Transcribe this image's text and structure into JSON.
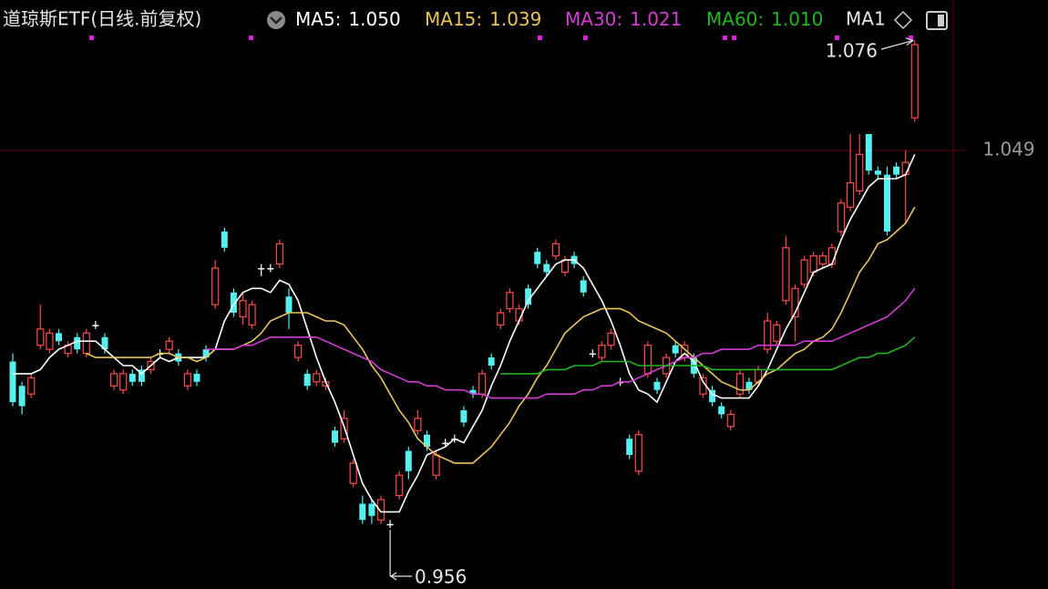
{
  "chart_data": {
    "type": "candlestick",
    "title": "道琼斯ETF(日线.前复权)",
    "ylim": [
      0.941,
      1.086
    ],
    "up_color": "#ff4a4a",
    "down_color": "#54f0f0",
    "flat_color": "#ffffff",
    "open": [
      0.997,
      0.991,
      0.989,
      1.001,
      1.0,
      1.004,
      0.999,
      1.003,
      0.999,
      1.006,
      1.003,
      0.991,
      0.99,
      0.994,
      0.995,
      0.995,
      0.999,
      1.0,
      0.999,
      0.991,
      0.994,
      1.0,
      1.011,
      1.029,
      1.014,
      1.008,
      1.006,
      1.02,
      1.02,
      1.021,
      1.013,
      0.998,
      0.994,
      0.992,
      0.991,
      0.98,
      0.978,
      0.967,
      0.962,
      0.962,
      0.958,
      0.957,
      0.964,
      0.975,
      0.98,
      0.979,
      0.969,
      0.977,
      0.978,
      0.985,
      0.99,
      0.989,
      0.998,
      1.006,
      1.01,
      1.007,
      1.015,
      1.024,
      1.021,
      1.023,
      1.019,
      1.023,
      1.017,
      0.999,
      0.998,
      1.001,
      0.992,
      0.978,
      0.97,
      0.994,
      0.992,
      0.994,
      1.001,
      0.998,
      0.998,
      0.989,
      0.99,
      0.986,
      0.981,
      0.989,
      0.992,
      0.992,
      1.0,
      1.002,
      1.012,
      1.008,
      1.016,
      1.019,
      1.021,
      1.021,
      1.029,
      1.035,
      1.039,
      1.053,
      1.044,
      1.043,
      1.045,
      1.043,
      1.057
    ],
    "high": [
      0.999,
      0.992,
      0.994,
      1.011,
      1.005,
      1.005,
      1.002,
      1.004,
      1.005,
      1.007,
      1.004,
      0.995,
      0.995,
      0.995,
      0.996,
      0.998,
      1.0,
      1.003,
      1.0,
      0.995,
      0.995,
      1.001,
      1.022,
      1.03,
      1.015,
      1.014,
      1.012,
      1.021,
      1.021,
      1.027,
      1.015,
      1.002,
      0.995,
      0.995,
      0.993,
      0.981,
      0.985,
      0.973,
      0.964,
      0.963,
      0.964,
      0.958,
      0.97,
      0.976,
      0.985,
      0.98,
      0.975,
      0.978,
      0.979,
      0.986,
      0.991,
      0.995,
      0.999,
      1.01,
      1.015,
      1.011,
      1.016,
      1.025,
      1.022,
      1.027,
      1.023,
      1.024,
      1.018,
      1.0,
      1.002,
      1.005,
      0.993,
      0.979,
      0.98,
      1.002,
      0.993,
      0.999,
      1.002,
      1.002,
      0.999,
      0.994,
      0.991,
      0.987,
      0.985,
      0.995,
      0.993,
      0.996,
      1.009,
      1.007,
      1.028,
      1.016,
      1.023,
      1.024,
      1.024,
      1.026,
      1.037,
      1.053,
      1.053,
      1.053,
      1.045,
      1.045,
      1.046,
      1.049,
      1.076
    ],
    "low": [
      0.986,
      0.984,
      0.988,
      1.0,
      0.999,
      1.001,
      0.998,
      0.999,
      0.998,
      1.005,
      0.999,
      0.99,
      0.989,
      0.991,
      0.991,
      0.994,
      0.998,
      0.999,
      0.996,
      0.99,
      0.991,
      0.997,
      1.01,
      1.024,
      1.008,
      1.006,
      1.005,
      1.018,
      1.019,
      1.02,
      1.005,
      0.997,
      0.99,
      0.991,
      0.99,
      0.976,
      0.977,
      0.966,
      0.957,
      0.957,
      0.957,
      0.956,
      0.963,
      0.968,
      0.979,
      0.975,
      0.968,
      0.976,
      0.977,
      0.981,
      0.988,
      0.988,
      0.995,
      1.005,
      1.009,
      1.006,
      1.01,
      1.02,
      1.018,
      1.022,
      1.018,
      1.02,
      1.013,
      0.998,
      0.997,
      1.0,
      0.991,
      0.973,
      0.969,
      0.993,
      0.989,
      0.993,
      0.998,
      0.997,
      0.993,
      0.988,
      0.986,
      0.983,
      0.98,
      0.988,
      0.989,
      0.991,
      0.999,
      1.001,
      1.011,
      1.002,
      1.015,
      1.018,
      1.02,
      1.02,
      1.028,
      1.034,
      1.038,
      1.043,
      1.042,
      1.028,
      1.042,
      1.031,
      1.056
    ],
    "close": [
      0.987,
      0.986,
      0.993,
      1.005,
      1.004,
      1.002,
      1.001,
      1.0,
      1.004,
      1.006,
      1.0,
      0.994,
      0.994,
      0.992,
      0.992,
      0.997,
      0.999,
      1.002,
      0.997,
      0.994,
      0.992,
      0.998,
      1.02,
      1.025,
      1.009,
      1.012,
      1.011,
      1.02,
      1.02,
      1.026,
      1.009,
      1.001,
      0.991,
      0.994,
      0.992,
      0.977,
      0.983,
      0.972,
      0.958,
      0.959,
      0.963,
      0.957,
      0.969,
      0.97,
      0.983,
      0.976,
      0.974,
      0.977,
      0.978,
      0.982,
      0.989,
      0.994,
      0.996,
      1.009,
      1.014,
      1.01,
      1.011,
      1.021,
      1.019,
      1.026,
      1.022,
      1.021,
      1.014,
      0.999,
      1.001,
      1.004,
      0.992,
      0.974,
      0.979,
      1.001,
      0.99,
      0.998,
      0.999,
      1.001,
      0.994,
      0.993,
      0.987,
      0.984,
      0.984,
      0.994,
      0.99,
      0.995,
      1.007,
      1.006,
      1.025,
      1.015,
      1.022,
      1.023,
      1.023,
      1.025,
      1.036,
      1.041,
      1.048,
      1.044,
      1.043,
      1.029,
      1.043,
      1.046,
      1.075
    ],
    "series": [
      {
        "name": "MA5:",
        "color": "#ffffff",
        "legend_value": {
          "value": 1.05,
          "label": "1.050"
        },
        "values": [
          0.994,
          0.994,
          0.994,
          0.995,
          0.998,
          1.0,
          1.001,
          1.002,
          1.002,
          1.002,
          1.0,
          0.998,
          0.996,
          0.996,
          0.994,
          0.996,
          0.998,
          0.997,
          0.998,
          0.998,
          0.998,
          0.998,
          1.0,
          1.007,
          1.011,
          1.014,
          1.015,
          1.015,
          1.014,
          1.017,
          1.016,
          1.012,
          1.005,
          0.998,
          0.992,
          0.987,
          0.981,
          0.974,
          0.967,
          0.963,
          0.96,
          0.96,
          0.96,
          0.965,
          0.969,
          0.974,
          0.975,
          0.976,
          0.978,
          0.977,
          0.981,
          0.985,
          0.991,
          0.996,
          1.002,
          1.007,
          1.012,
          1.015,
          1.018,
          1.021,
          1.022,
          1.022,
          1.02,
          1.016,
          1.012,
          1.007,
          1.001,
          0.994,
          0.99,
          0.989,
          0.987,
          0.992,
          0.997,
          0.999,
          0.997,
          0.992,
          0.989,
          0.988,
          0.988,
          0.988,
          0.988,
          0.991,
          0.995,
          1.0,
          1.005,
          1.009,
          1.014,
          1.019,
          1.02,
          1.021,
          1.027,
          1.032,
          1.036,
          1.04,
          1.042,
          1.042,
          1.042,
          1.043,
          1.048
        ]
      },
      {
        "name": "MA15:",
        "color": "#e8c55c",
        "legend_value": {
          "value": 1.039,
          "label": "1.039"
        },
        "values": [
          null,
          null,
          null,
          null,
          null,
          null,
          null,
          null,
          0.999,
          0.998,
          0.998,
          0.998,
          0.998,
          0.998,
          0.998,
          0.998,
          0.999,
          0.999,
          0.998,
          0.998,
          0.997,
          0.998,
          1.0,
          1.0,
          1.0,
          1.001,
          1.002,
          1.004,
          1.007,
          1.008,
          1.009,
          1.009,
          1.009,
          1.008,
          1.007,
          1.007,
          1.006,
          1.003,
          1.0,
          0.996,
          0.993,
          0.989,
          0.985,
          0.982,
          0.978,
          0.976,
          0.974,
          0.973,
          0.972,
          0.972,
          0.972,
          0.974,
          0.976,
          0.979,
          0.982,
          0.986,
          0.989,
          0.993,
          0.996,
          1.0,
          1.004,
          1.006,
          1.008,
          1.009,
          1.01,
          1.01,
          1.01,
          1.009,
          1.007,
          1.006,
          1.005,
          1.004,
          1.002,
          1.0,
          0.998,
          0.996,
          0.994,
          0.992,
          0.991,
          0.99,
          0.99,
          0.992,
          0.994,
          0.995,
          0.997,
          0.999,
          1.0,
          1.002,
          1.003,
          1.005,
          1.009,
          1.014,
          1.019,
          1.022,
          1.026,
          1.027,
          1.029,
          1.031,
          1.035
        ]
      },
      {
        "name": "MA30:",
        "color": "#d43cd4",
        "legend_value": {
          "value": 1.021,
          "label": "1.021"
        },
        "values": [
          null,
          null,
          null,
          null,
          null,
          null,
          null,
          null,
          null,
          null,
          null,
          null,
          null,
          null,
          null,
          null,
          null,
          null,
          null,
          null,
          null,
          1.0,
          1.0,
          1.0,
          1.0,
          1.001,
          1.001,
          1.002,
          1.003,
          1.003,
          1.003,
          1.003,
          1.003,
          1.003,
          1.002,
          1.001,
          1.0,
          0.999,
          0.998,
          0.997,
          0.995,
          0.994,
          0.993,
          0.992,
          0.992,
          0.991,
          0.991,
          0.99,
          0.99,
          0.99,
          0.989,
          0.989,
          0.988,
          0.988,
          0.988,
          0.988,
          0.988,
          0.988,
          0.989,
          0.989,
          0.989,
          0.989,
          0.99,
          0.99,
          0.991,
          0.991,
          0.992,
          0.992,
          0.993,
          0.994,
          0.995,
          0.996,
          0.997,
          0.998,
          0.998,
          0.999,
          0.999,
          1.0,
          1.0,
          1.0,
          1.0,
          1.001,
          1.001,
          1.001,
          1.001,
          1.001,
          1.002,
          1.002,
          1.002,
          1.002,
          1.003,
          1.004,
          1.005,
          1.006,
          1.007,
          1.008,
          1.01,
          1.012,
          1.015
        ]
      },
      {
        "name": "MA60:",
        "color": "#22b522",
        "legend_value": {
          "value": 1.01,
          "label": "1.010"
        },
        "values": [
          null,
          null,
          null,
          null,
          null,
          null,
          null,
          null,
          null,
          null,
          null,
          null,
          null,
          null,
          null,
          null,
          null,
          null,
          null,
          null,
          null,
          null,
          null,
          null,
          null,
          null,
          null,
          null,
          null,
          null,
          null,
          null,
          null,
          null,
          null,
          null,
          null,
          null,
          null,
          null,
          null,
          null,
          null,
          null,
          null,
          null,
          null,
          null,
          null,
          null,
          null,
          null,
          null,
          0.994,
          0.994,
          0.994,
          0.994,
          0.994,
          0.995,
          0.995,
          0.995,
          0.996,
          0.996,
          0.996,
          0.997,
          0.997,
          0.997,
          0.997,
          0.996,
          0.996,
          0.996,
          0.996,
          0.996,
          0.996,
          0.996,
          0.996,
          0.995,
          0.995,
          0.995,
          0.995,
          0.995,
          0.995,
          0.995,
          0.995,
          0.995,
          0.995,
          0.995,
          0.995,
          0.995,
          0.995,
          0.996,
          0.997,
          0.998,
          0.998,
          0.999,
          0.999,
          1.0,
          1.001,
          1.003
        ]
      }
    ],
    "legend_truncated": "MA1",
    "high_label": 1.076,
    "low_label": 0.956,
    "last_price": 1.049
  }
}
